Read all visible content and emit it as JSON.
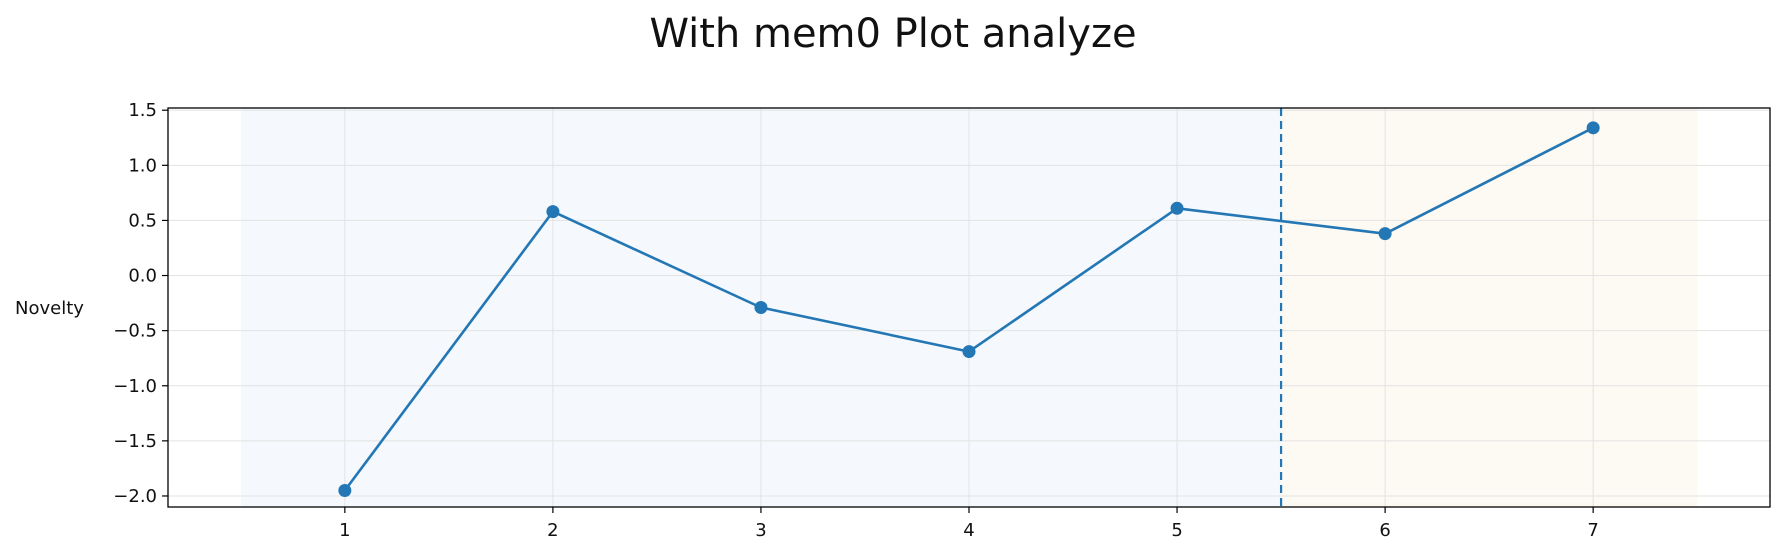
{
  "chart_data": {
    "type": "line",
    "title": "With mem0 Plot analyze",
    "ylabel": "Novelty",
    "xlabel": "",
    "x": [
      1,
      2,
      3,
      4,
      5,
      6,
      7
    ],
    "series": [
      {
        "values": [
          -1.95,
          0.58,
          -0.29,
          -0.69,
          0.61,
          0.38,
          1.34
        ]
      }
    ],
    "xticks": [
      1,
      2,
      3,
      4,
      5,
      6,
      7
    ],
    "xtick_labels": [
      "1",
      "2",
      "3",
      "4",
      "5",
      "6",
      "7"
    ],
    "yticks": [
      -2.0,
      -1.5,
      -1.0,
      -0.5,
      0.0,
      0.5,
      1.0,
      1.5
    ],
    "ytick_labels": [
      "−2.0",
      "−1.5",
      "−1.0",
      "−0.5",
      "0.0",
      "0.5",
      "1.0",
      "1.5"
    ],
    "xlim": [
      0.15,
      7.85
    ],
    "ylim": [
      -2.1,
      1.52
    ],
    "grid": true,
    "regions": [
      {
        "x_start": 0.5,
        "x_end": 5.5,
        "color": "#f5f8fc"
      },
      {
        "x_start": 5.5,
        "x_end": 7.5,
        "color": "#fdf9f3"
      }
    ],
    "vline": {
      "x": 5.5,
      "style": "dashed"
    },
    "colors": {
      "line": "#2377b4",
      "grid": "#e3e3e3",
      "axis": "#000000"
    }
  }
}
